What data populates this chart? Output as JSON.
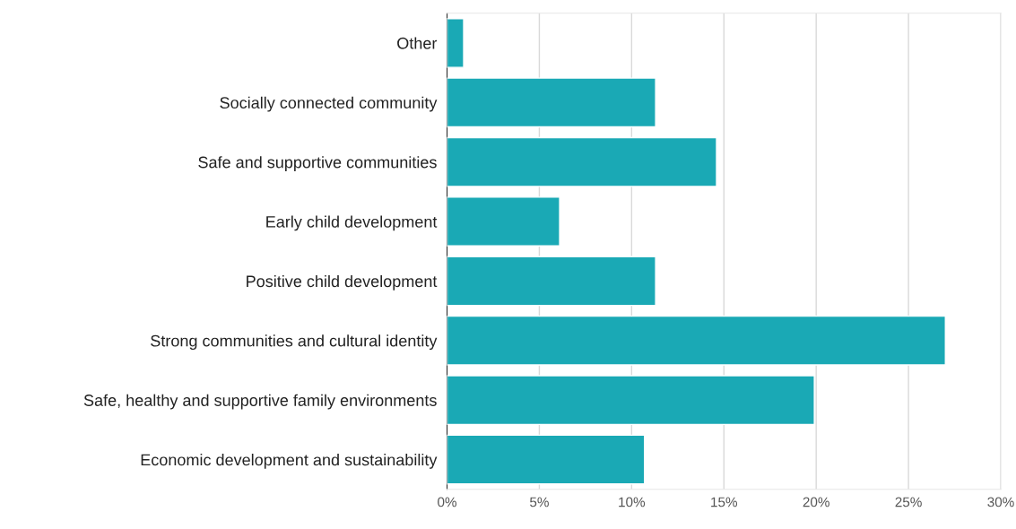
{
  "chart_data": {
    "type": "bar",
    "orientation": "horizontal",
    "categories": [
      "Other",
      "Socially connected community",
      "Safe and supportive communities",
      "Early child development",
      "Positive child development",
      "Strong communities and cultural identity",
      "Safe, healthy and supportive family environments",
      "Economic development and sustainability"
    ],
    "values": [
      0.9,
      11.3,
      14.6,
      6.1,
      11.3,
      27.0,
      19.9,
      10.7
    ],
    "color": "#1aa9b5",
    "xlim": [
      0,
      30
    ],
    "xticks": [
      {
        "value": 0,
        "label": "0%"
      },
      {
        "value": 5,
        "label": "5%"
      },
      {
        "value": 10,
        "label": "10%"
      },
      {
        "value": 15,
        "label": "15%"
      },
      {
        "value": 20,
        "label": "20%"
      },
      {
        "value": 25,
        "label": "25%"
      },
      {
        "value": 30,
        "label": "30%"
      }
    ],
    "grid": "x"
  }
}
